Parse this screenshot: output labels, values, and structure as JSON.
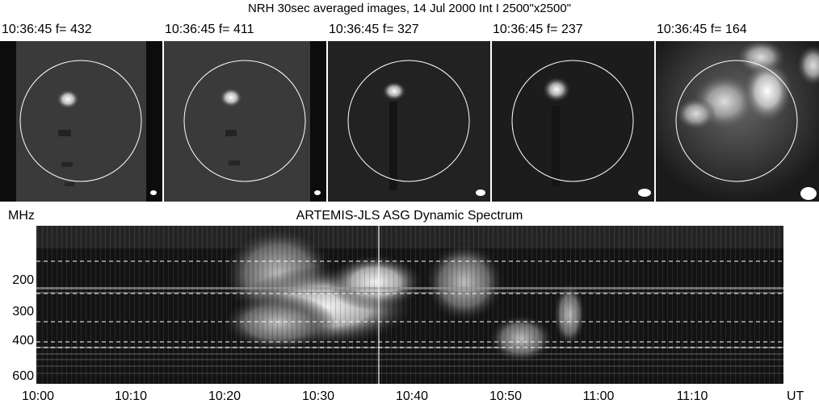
{
  "title": "NRH 30sec averaged images, 14 Jul 2000 Int I 2500\"x2500\"",
  "panels": [
    {
      "label": "10:36:45 f=  432"
    },
    {
      "label": "10:36:45 f=  411"
    },
    {
      "label": "10:36:45 f=  327"
    },
    {
      "label": "10:36:45 f=  237"
    },
    {
      "label": "10:36:45 f=  164"
    }
  ],
  "spectrum": {
    "title": "ARTEMIS-JLS ASG Dynamic Spectrum",
    "y_unit": "MHz",
    "y_ticks": [
      "200",
      "300",
      "400",
      "600"
    ],
    "x_ticks": [
      "10:00",
      "10:10",
      "10:20",
      "10:30",
      "10:40",
      "10:50",
      "11:00",
      "11:10"
    ],
    "x_unit": "UT"
  }
}
